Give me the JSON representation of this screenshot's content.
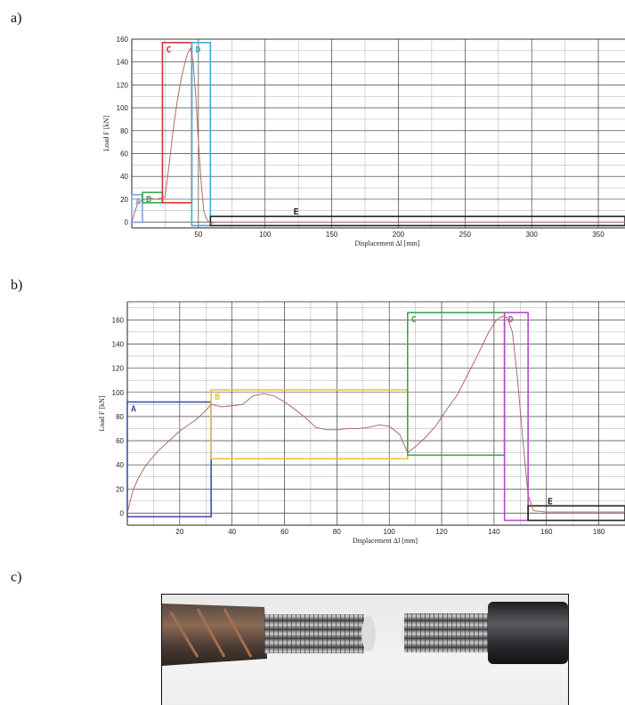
{
  "panels": [
    {
      "label": "a)"
    },
    {
      "label": "b)"
    },
    {
      "label": "c)"
    }
  ],
  "chart_data": [
    {
      "type": "line",
      "xlabel": "Displacement Δl [mm]",
      "ylabel": "Load F [kN]",
      "xlim": [
        0,
        370
      ],
      "ylim": [
        -5,
        160
      ],
      "xticks": [
        50,
        100,
        150,
        200,
        250,
        300,
        350
      ],
      "yticks": [
        0,
        20,
        40,
        60,
        80,
        100,
        120,
        140,
        160
      ],
      "grid": true,
      "series": [
        {
          "x": [
            0,
            2,
            4,
            6,
            8,
            10,
            14,
            18,
            22,
            25,
            28,
            31,
            34,
            37,
            40,
            42,
            44,
            46,
            48,
            50,
            52,
            54,
            56,
            58,
            60,
            62,
            100,
            200,
            300,
            370
          ],
          "y": [
            0,
            8,
            15,
            18,
            19,
            20,
            21,
            20,
            21,
            22,
            50,
            80,
            105,
            125,
            140,
            148,
            152,
            140,
            110,
            70,
            35,
            10,
            3,
            0,
            -1,
            0,
            0,
            0,
            0,
            0
          ]
        }
      ],
      "regions": [
        {
          "label": "A",
          "color": "#7fa3d4",
          "x": [
            0,
            8
          ],
          "y": [
            0,
            24
          ]
        },
        {
          "label": "B",
          "color": "#3aa84a",
          "x": [
            8,
            23
          ],
          "y": [
            17,
            26
          ]
        },
        {
          "label": "C",
          "color": "#d0343c",
          "x": [
            23,
            45
          ],
          "y": [
            17,
            157
          ]
        },
        {
          "label": "D",
          "color": "#3aaed6",
          "x": [
            45,
            59
          ],
          "y": [
            -3,
            157
          ]
        },
        {
          "label": "E",
          "color": "#222222",
          "x": [
            59,
            370
          ],
          "y": [
            -3,
            5
          ]
        }
      ]
    },
    {
      "type": "line",
      "xlabel": "Displacement Δl [mm]",
      "ylabel": "Load F [kN]",
      "xlim": [
        0,
        190
      ],
      "ylim": [
        -10,
        175
      ],
      "xticks": [
        20,
        40,
        60,
        80,
        100,
        120,
        140,
        160,
        180
      ],
      "yticks": [
        0,
        20,
        40,
        60,
        80,
        100,
        120,
        140,
        160
      ],
      "grid": true,
      "series": [
        {
          "x": [
            0,
            2,
            4,
            6,
            8,
            10,
            12,
            14,
            16,
            18,
            20,
            22,
            24,
            26,
            28,
            30,
            32,
            36,
            40,
            44,
            48,
            52,
            56,
            60,
            64,
            68,
            72,
            76,
            80,
            84,
            88,
            92,
            96,
            100,
            104,
            107,
            110,
            114,
            118,
            122,
            126,
            130,
            134,
            138,
            141,
            143,
            145,
            147,
            149,
            151,
            153,
            155,
            160,
            170,
            180,
            190
          ],
          "y": [
            0,
            18,
            28,
            36,
            42,
            47,
            52,
            56,
            60,
            64,
            68,
            71,
            74,
            77,
            81,
            85,
            90,
            88,
            89,
            90,
            97,
            99,
            97,
            92,
            86,
            79,
            71,
            69,
            69,
            70,
            70,
            71,
            73,
            72,
            65,
            50,
            55,
            63,
            73,
            86,
            98,
            115,
            132,
            150,
            160,
            163,
            162,
            150,
            110,
            60,
            15,
            2,
            1,
            1,
            1,
            1
          ]
        }
      ],
      "regions": [
        {
          "label": "A",
          "color": "#3b4fb8",
          "x": [
            0,
            32
          ],
          "y": [
            -3,
            92
          ]
        },
        {
          "label": "B",
          "color": "#e8c23a",
          "x": [
            32,
            107
          ],
          "y": [
            45,
            102
          ]
        },
        {
          "label": "C",
          "color": "#3aa84a",
          "x": [
            107,
            144
          ],
          "y": [
            48,
            166
          ]
        },
        {
          "label": "D",
          "color": "#b04fc8",
          "x": [
            144,
            153
          ],
          "y": [
            -6,
            166
          ]
        },
        {
          "label": "E",
          "color": "#222222",
          "x": [
            153,
            190
          ],
          "y": [
            -6,
            6
          ]
        }
      ]
    }
  ]
}
